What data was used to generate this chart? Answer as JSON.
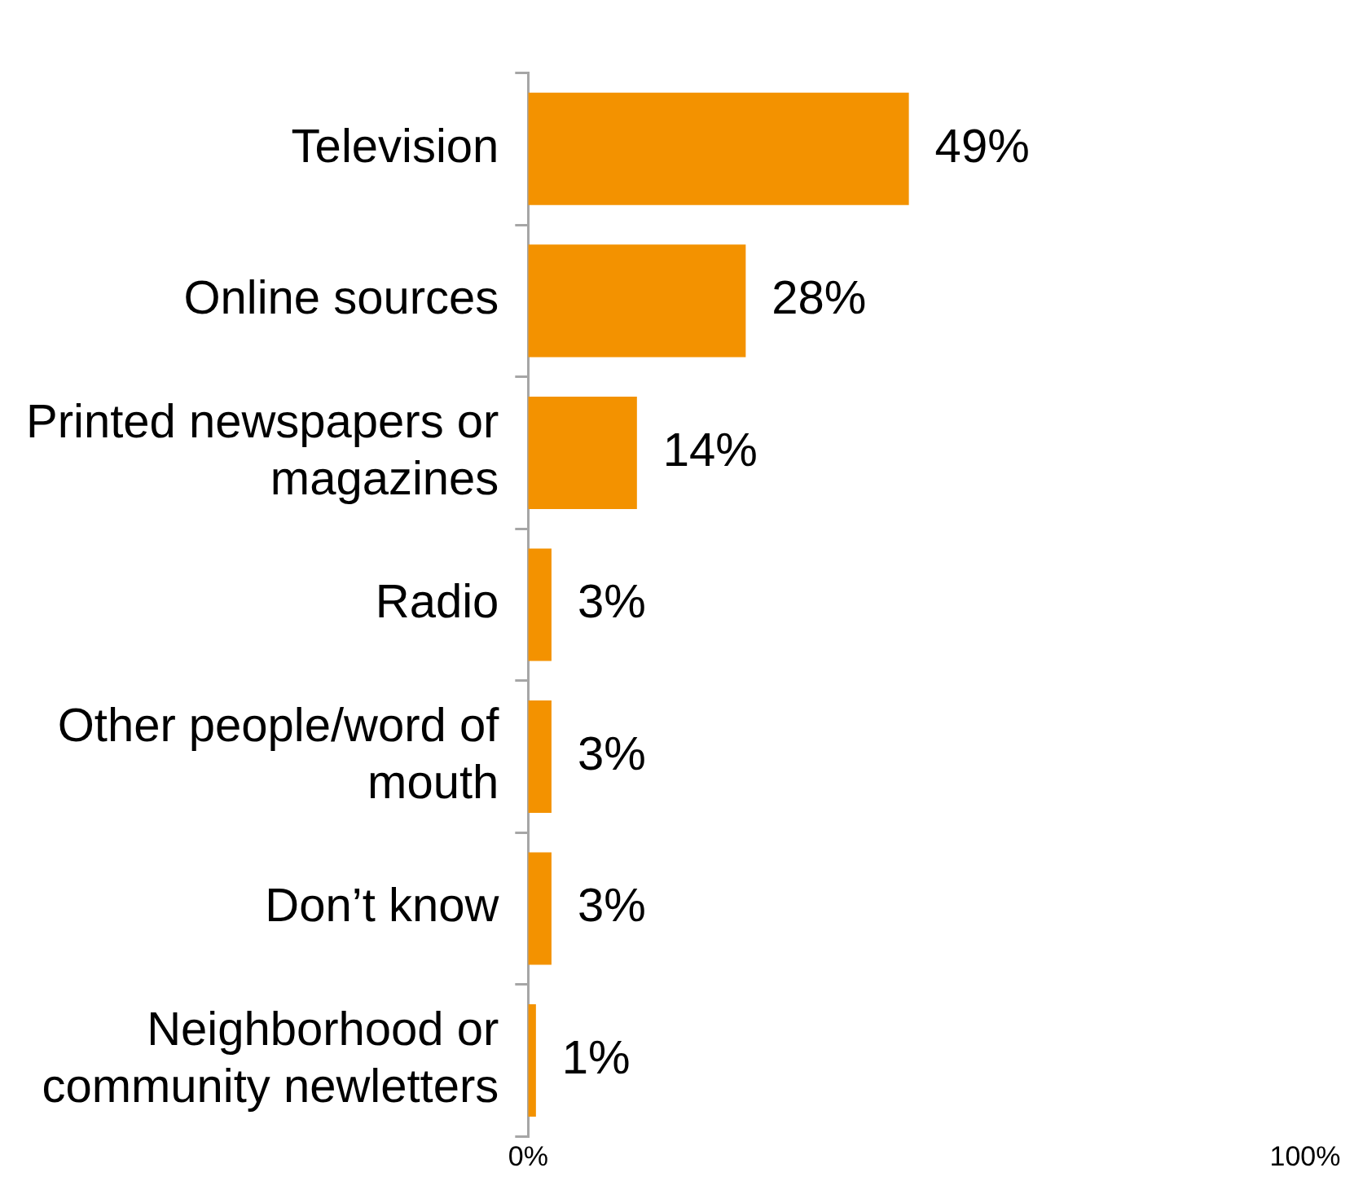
{
  "chart_data": {
    "type": "bar",
    "orientation": "horizontal",
    "categories": [
      "Television",
      "Online sources",
      "Printed newspapers or magazines",
      "Radio",
      "Other people/word of mouth",
      "Don’t know",
      "Neighborhood or community newletters"
    ],
    "values": [
      49,
      28,
      14,
      3,
      3,
      3,
      1
    ],
    "value_labels": [
      "49%",
      "28%",
      "14%",
      "3%",
      "3%",
      "3%",
      "1%"
    ],
    "color": "#f39200",
    "xlim": [
      0,
      100
    ],
    "xticks": [
      {
        "value": 0,
        "label": "0%"
      },
      {
        "value": 100,
        "label": "100%"
      }
    ],
    "legend": false
  }
}
